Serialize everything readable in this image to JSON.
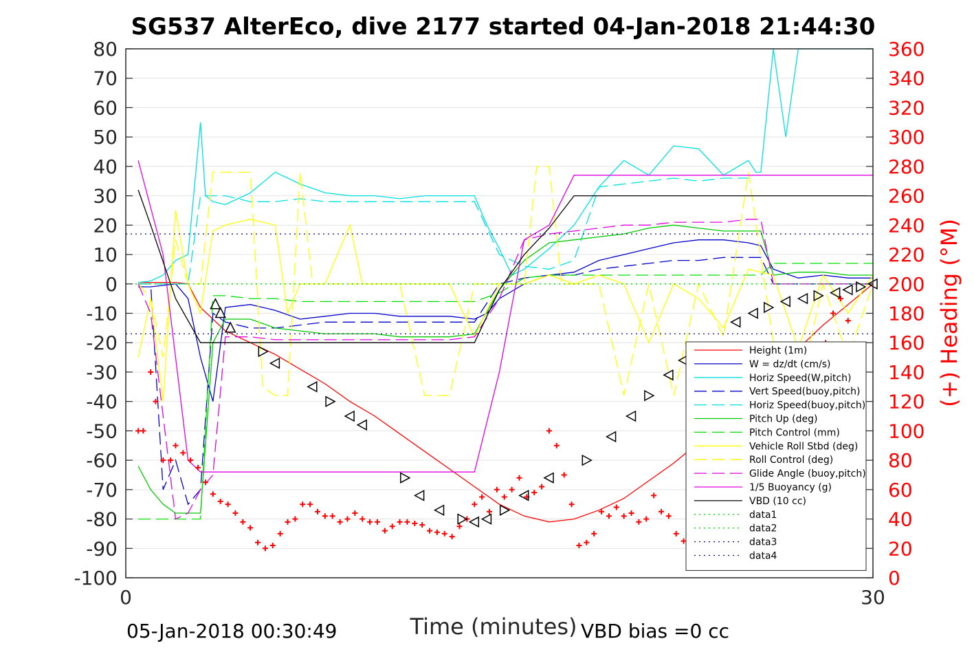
{
  "chart_data": {
    "type": "line",
    "title": "SG537 AlterEco, dive 2177 started 04-Jan-2018 21:44:30",
    "xlabel": "Time (minutes)",
    "ylabel_right": "(+) Heading (°M)",
    "footer_left": "05-Jan-2018 00:30:49",
    "footer_right": "VBD bias =0 cc",
    "xlim": [
      0,
      30
    ],
    "ylim": [
      -100,
      80
    ],
    "ylim_right": [
      0,
      360
    ],
    "x_ticks": [
      0,
      30
    ],
    "y_ticks": [
      80,
      70,
      60,
      50,
      40,
      30,
      20,
      10,
      0,
      -10,
      -20,
      -30,
      -40,
      -50,
      -60,
      -70,
      -80,
      -90,
      -100
    ],
    "y_ticks_right": [
      360,
      340,
      320,
      300,
      280,
      260,
      240,
      220,
      200,
      180,
      160,
      140,
      120,
      100,
      80,
      60,
      40,
      20,
      0
    ],
    "grid": "horizontal",
    "legend_position": "right-lower",
    "series": [
      {
        "name": "Height (1m)",
        "color": "#ff0000",
        "style": "solid",
        "x": [
          0.5,
          2,
          2.5,
          3,
          4,
          5,
          6,
          7,
          8,
          9,
          10,
          11,
          12,
          13,
          14,
          15,
          16,
          17,
          18,
          19,
          20,
          21,
          22,
          23,
          24,
          25,
          26,
          27,
          28,
          29,
          30
        ],
        "y": [
          0.5,
          0.5,
          0,
          -8,
          -16,
          -20,
          -24,
          -29,
          -34,
          -40,
          -45,
          -51,
          -57,
          -63,
          -69,
          -75,
          -79,
          -81,
          -80,
          -77,
          -73,
          -67,
          -61,
          -54,
          -46,
          -38,
          -30,
          -22,
          -14,
          -7,
          0
        ]
      },
      {
        "name": "W = dz/dt (cm/s)",
        "color": "#0000c8",
        "style": "solid",
        "x": [
          0.5,
          1,
          2,
          2.5,
          3,
          3.5,
          4,
          5,
          6,
          7,
          8,
          9,
          10,
          11,
          12,
          13,
          14,
          14.5,
          15,
          16,
          17,
          18,
          19,
          20,
          21,
          22,
          23,
          24,
          25,
          25.5,
          26,
          27,
          28,
          29,
          30
        ],
        "y": [
          -1,
          -1,
          0,
          -5,
          -25,
          -40,
          -8,
          -7,
          -9,
          -12,
          -11,
          -10,
          -10,
          -11,
          -11,
          -11,
          -12,
          -10,
          -5,
          0,
          3,
          4,
          8,
          10,
          12,
          14,
          15,
          15,
          14,
          13,
          5,
          2,
          3,
          2,
          2
        ]
      },
      {
        "name": "Horiz Speed(W,pitch)",
        "color": "#00e0e0",
        "style": "solid",
        "x": [
          0.5,
          1,
          1.5,
          2,
          2.5,
          3,
          3.2,
          3.5,
          4,
          5,
          6,
          7,
          8,
          9,
          10,
          11,
          12,
          13,
          14,
          14.5,
          15,
          15.5,
          16,
          17,
          18,
          19,
          20,
          21,
          22,
          23,
          24,
          25,
          25.3,
          25.5,
          26,
          26.5,
          27,
          28,
          29,
          30
        ],
        "y": [
          0.5,
          1,
          3,
          8,
          10,
          55,
          30,
          28,
          27,
          31,
          38,
          34,
          31,
          30,
          30,
          29,
          30,
          30,
          30,
          20,
          12,
          3,
          5,
          12,
          20,
          33,
          42,
          37,
          47,
          46,
          37,
          42,
          38,
          38,
          80,
          50,
          80,
          80,
          80,
          80
        ]
      },
      {
        "name": "Vert Speed(buoy,pitch)",
        "color": "#0000c8",
        "style": "dash",
        "x": [
          0.5,
          1,
          1.5,
          2,
          2.5,
          3,
          3.5,
          4,
          5,
          6,
          7,
          8,
          9,
          10,
          11,
          12,
          13,
          14,
          15,
          16,
          17,
          18,
          19,
          20,
          21,
          22,
          23,
          24,
          25,
          25.5,
          26,
          27,
          28,
          29,
          30
        ],
        "y": [
          0,
          0,
          -70,
          -60,
          -75,
          -70,
          -10,
          -13,
          -15,
          -15,
          -14,
          -13,
          -13,
          -13,
          -13,
          -13,
          -13,
          -13,
          0,
          2,
          3,
          3,
          5,
          6,
          7,
          8,
          8,
          9,
          9,
          9,
          0,
          0,
          0,
          0,
          0
        ]
      },
      {
        "name": "Horiz Speed(buoy,pitch)",
        "color": "#00e0e0",
        "style": "dash",
        "x": [
          0.5,
          1,
          2,
          2.5,
          3,
          4,
          5,
          6,
          7,
          8,
          9,
          10,
          11,
          12,
          13,
          14,
          15,
          16,
          17,
          18,
          19,
          20,
          21,
          22,
          23,
          24,
          25
        ],
        "y": [
          0,
          0,
          0,
          0,
          30,
          30,
          28,
          28,
          29,
          28,
          28,
          28,
          28,
          28,
          28,
          28,
          10,
          6,
          5,
          8,
          33,
          34,
          35,
          36,
          35,
          36,
          36
        ]
      },
      {
        "name": "Pitch Up (deg)",
        "color": "#00c800",
        "style": "solid",
        "x": [
          0.5,
          1,
          1.5,
          2,
          2.5,
          3,
          3.5,
          4,
          5,
          6,
          7,
          8,
          9,
          10,
          11,
          12,
          13,
          14,
          15,
          16,
          17,
          18,
          19,
          20,
          21,
          22,
          23,
          24,
          25,
          25.5,
          26,
          27,
          28,
          29,
          30
        ],
        "y": [
          -62,
          -70,
          -75,
          -78,
          -78,
          -78,
          -20,
          -12,
          -12,
          -15,
          -16,
          -17,
          -17,
          -17,
          -18,
          -18,
          -18,
          -17,
          -2,
          8,
          14,
          15,
          16,
          17,
          19,
          20,
          19,
          18,
          18,
          18,
          3,
          4,
          4,
          3,
          3
        ]
      },
      {
        "name": "Pitch Control (mm)",
        "color": "#00e000",
        "style": "dash",
        "x": [
          0.5,
          2,
          2.5,
          3,
          3.5,
          4,
          5,
          6,
          7,
          8,
          9,
          10,
          11,
          12,
          13,
          14,
          15,
          16,
          17,
          18,
          19,
          20,
          21,
          22,
          23,
          24,
          25,
          25.5,
          26,
          27,
          28,
          29,
          30
        ],
        "y": [
          -80,
          -80,
          -80,
          -80,
          -4,
          -4,
          -5,
          -5,
          -6,
          -6,
          -6,
          -6,
          -6,
          -6,
          -6,
          -6,
          -3,
          2,
          3,
          3,
          3,
          3,
          3,
          3,
          3,
          3,
          3,
          3,
          7,
          7,
          7,
          7,
          7
        ]
      },
      {
        "name": "Vehicle Roll Stbd (deg)",
        "color": "#ffff00",
        "style": "solid",
        "x": [
          0.5,
          1,
          1.5,
          2,
          2.5,
          3,
          3.5,
          4,
          5,
          6,
          6.5,
          7,
          8,
          9,
          9.5,
          10,
          11,
          12,
          13,
          14,
          15,
          16,
          17,
          18,
          19,
          20,
          21,
          22,
          23,
          24,
          25,
          26,
          27,
          28,
          29,
          30
        ],
        "y": [
          -25,
          -5,
          -40,
          25,
          0,
          -10,
          18,
          20,
          22,
          20,
          -10,
          0,
          0,
          20,
          0,
          0,
          0,
          0,
          0,
          -18,
          0,
          0,
          3,
          0,
          3,
          0,
          -20,
          0,
          -5,
          -15,
          5,
          3,
          -22,
          3,
          -10,
          3
        ]
      },
      {
        "name": "Roll Control (deg)",
        "color": "#ffff00",
        "style": "dash",
        "x": [
          0.5,
          1,
          1.5,
          2,
          2.5,
          3,
          3.5,
          4,
          4.5,
          5,
          5.5,
          6,
          6.5,
          7,
          7.5,
          8,
          8.5,
          9,
          9.5,
          10,
          11,
          12,
          13,
          14,
          15,
          16,
          16.5,
          17,
          17.5,
          18,
          19,
          20,
          21,
          22,
          23,
          24,
          25,
          26,
          27,
          28,
          29,
          30
        ],
        "y": [
          0,
          -5,
          -25,
          15,
          0,
          0,
          38,
          38,
          38,
          38,
          -35,
          -38,
          -38,
          38,
          0,
          0,
          0,
          0,
          0,
          0,
          0,
          -38,
          -38,
          0,
          0,
          0,
          40,
          40,
          0,
          0,
          0,
          -38,
          0,
          -38,
          0,
          -18,
          38,
          -20,
          -38,
          0,
          -25,
          0
        ]
      },
      {
        "name": "Glide Angle (buoy,pitch)",
        "color": "#e000e0",
        "style": "dash",
        "x": [
          0.5,
          1,
          2,
          2.5,
          3,
          3.5,
          4,
          5,
          6,
          7,
          8,
          9,
          10,
          11,
          12,
          13,
          14,
          15,
          16,
          17,
          18,
          19,
          20,
          21,
          22,
          23,
          24,
          25,
          25.5,
          26,
          27,
          28,
          29,
          30
        ],
        "y": [
          0,
          -10,
          -80,
          -78,
          -70,
          -65,
          -18,
          -18,
          -19,
          -19,
          -19,
          -19,
          -19,
          -19,
          -19,
          -19,
          -18,
          -5,
          15,
          17,
          18,
          19,
          20,
          20,
          21,
          21,
          21,
          22,
          22,
          0,
          0,
          0,
          0,
          0
        ]
      },
      {
        "name": "1/5 Buoyancy (g)",
        "color": "#e000e0",
        "style": "solid",
        "x": [
          0.5,
          1.5,
          2.5,
          3,
          4,
          5,
          6,
          7,
          8,
          9,
          10,
          11,
          12,
          13,
          14,
          15,
          16,
          17,
          18,
          19,
          20,
          21,
          22,
          23,
          24,
          25,
          26,
          27,
          28,
          29,
          30
        ],
        "y": [
          42,
          10,
          -60,
          -64,
          -64,
          -64,
          -64,
          -64,
          -64,
          -64,
          -64,
          -64,
          -64,
          -64,
          -64,
          -30,
          15,
          20,
          37,
          37,
          37,
          37,
          37,
          37,
          37,
          37,
          37,
          37,
          37,
          37,
          37
        ]
      },
      {
        "name": "VBD (10 cc)",
        "color": "#000000",
        "style": "solid",
        "x": [
          0.5,
          1,
          2,
          3,
          4,
          5,
          6,
          7,
          8,
          9,
          10,
          11,
          12,
          13,
          14,
          15,
          16,
          17,
          18,
          19,
          20,
          21,
          22,
          23,
          24,
          25,
          26,
          27,
          28,
          29,
          30
        ],
        "y": [
          32,
          20,
          -5,
          -20,
          -20,
          -20,
          -20,
          -20,
          -20,
          -20,
          -20,
          -20,
          -20,
          -20,
          -20,
          -2,
          10,
          19,
          30,
          30,
          30,
          30,
          30,
          30,
          30,
          30,
          30,
          30,
          30,
          30,
          30
        ]
      },
      {
        "name": "data1",
        "color": "#00e000",
        "style": "dot",
        "x": [
          0,
          30
        ],
        "y": [
          0,
          0
        ]
      },
      {
        "name": "data2",
        "color": "#00e000",
        "style": "dot",
        "x": [
          0,
          30
        ],
        "y": [
          0,
          0
        ]
      },
      {
        "name": "data3",
        "color": "#00008b",
        "style": "dot",
        "x": [
          0,
          30
        ],
        "y": [
          17,
          17
        ]
      },
      {
        "name": "data4",
        "color": "#00008b",
        "style": "dot",
        "x": [
          0,
          30
        ],
        "y": [
          -17,
          -17
        ]
      }
    ],
    "heading": {
      "color": "#ff0000",
      "marker": "+",
      "x": [
        0.5,
        0.7,
        1.0,
        1.2,
        1.5,
        1.8,
        2.0,
        2.3,
        2.6,
        2.9,
        3.2,
        3.5,
        3.8,
        4.1,
        4.4,
        4.7,
        5.0,
        5.3,
        5.6,
        5.9,
        6.2,
        6.5,
        6.8,
        7.1,
        7.4,
        7.7,
        8.0,
        8.3,
        8.6,
        8.9,
        9.2,
        9.5,
        9.8,
        10.1,
        10.4,
        10.7,
        11.0,
        11.3,
        11.6,
        11.9,
        12.2,
        12.5,
        12.8,
        13.1,
        13.4,
        13.7,
        14.0,
        14.3,
        14.6,
        14.9,
        15.2,
        15.5,
        15.8,
        16.1,
        16.4,
        16.7,
        17.0,
        17.3,
        17.6,
        17.9,
        18.2,
        18.5,
        18.8,
        19.1,
        19.4,
        19.7,
        20.0,
        20.3,
        20.6,
        20.9,
        21.2,
        21.5,
        21.8,
        22.1,
        22.4,
        22.7,
        23.0,
        23.3,
        23.6,
        23.9,
        24.2,
        24.5,
        24.8,
        25.1,
        25.4,
        25.7,
        26.0,
        26.3,
        26.6,
        26.9,
        27.2,
        27.5,
        27.8,
        28.1,
        28.4,
        28.7,
        29.0,
        29.3,
        29.6
      ],
      "y": [
        100,
        100,
        140,
        120,
        80,
        80,
        90,
        85,
        80,
        75,
        65,
        57,
        52,
        50,
        44,
        38,
        34,
        24,
        20,
        22,
        30,
        38,
        40,
        50,
        50,
        45,
        42,
        42,
        38,
        40,
        44,
        40,
        38,
        38,
        32,
        35,
        38,
        38,
        37,
        36,
        32,
        31,
        30,
        28,
        35,
        40,
        50,
        55,
        45,
        60,
        55,
        60,
        68,
        55,
        58,
        62,
        100,
        90,
        70,
        50,
        22,
        24,
        30,
        45,
        42,
        48,
        42,
        44,
        38,
        40,
        56,
        45,
        42,
        30,
        25,
        26,
        30,
        48,
        50,
        48,
        43,
        35,
        28,
        22,
        30,
        30,
        35,
        40,
        45,
        42,
        40,
        70,
        100,
        160,
        180,
        190,
        175,
        135,
        95
      ]
    },
    "triangle_markers": {
      "x": [
        3.6,
        3.8,
        4.2,
        5.5,
        6.0,
        7.5,
        8.2,
        9.0,
        9.5,
        11.2,
        11.8,
        12.6,
        13.5,
        14.0,
        14.5,
        15.2,
        16.0,
        17.0,
        18.5,
        19.5,
        20.3,
        21.0,
        21.8,
        22.4,
        22.8,
        24.5,
        25.2,
        25.8,
        26.5,
        27.2,
        27.8,
        28.5,
        29.0,
        29.5,
        30.0
      ],
      "y": [
        -7,
        -10,
        -15,
        -23,
        -27,
        -35,
        -40,
        -45,
        -48,
        -66,
        -72,
        -77,
        -80,
        -81,
        -80,
        -77,
        -72,
        -66,
        -60,
        -52,
        -45,
        -38,
        -31,
        -26,
        -22,
        -13,
        -10,
        -8,
        -6,
        -5,
        -4,
        -3,
        -2,
        -1,
        0
      ]
    }
  }
}
